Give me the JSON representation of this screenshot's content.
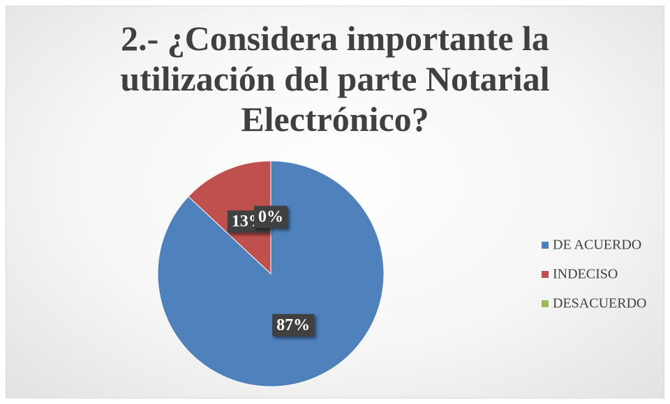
{
  "chart_data": {
    "type": "pie",
    "title": "2.- ¿Considera importante la utilización del parte Notarial Electrónico?",
    "categories": [
      "DE ACUERDO",
      "INDECISO",
      "DESACUERDO"
    ],
    "values": [
      87,
      13,
      0
    ],
    "value_labels": [
      "87%",
      "13%",
      "0%"
    ],
    "colors": [
      "#4f81bd",
      "#c0504d",
      "#9bbb59"
    ],
    "legend": "right"
  }
}
